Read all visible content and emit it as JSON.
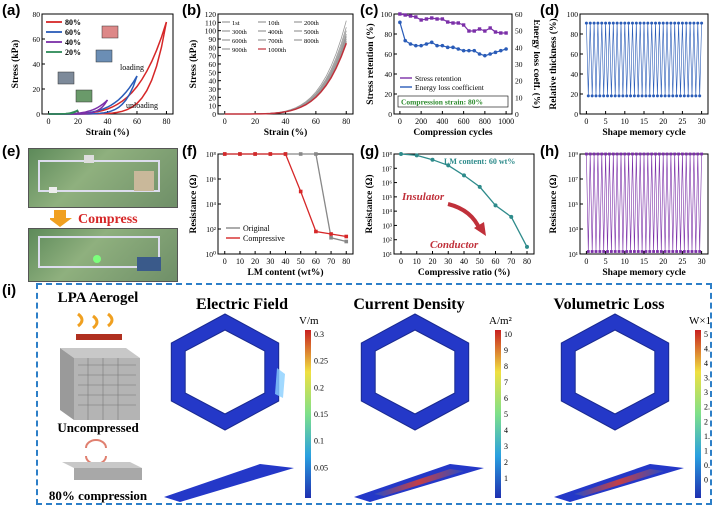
{
  "labels": {
    "a": "(a)",
    "b": "(b)",
    "c": "(c)",
    "d": "(d)",
    "e": "(e)",
    "f": "(f)",
    "g": "(g)",
    "h": "(h)",
    "i": "(i)"
  },
  "colors": {
    "accent": "#2d7fc8",
    "red": "#d62728",
    "purple": "#7b2fa8",
    "blue": "#2a5cb8",
    "teal": "#2e8b8b",
    "gray": "#888888"
  },
  "panel_e": {
    "compress_label": "Compress"
  },
  "panel_i": {
    "aerogel_title": "LPA Aerogel",
    "uncompressed": "Uncompressed",
    "compressed": "80% compression",
    "fields": [
      {
        "title": "Electric Field",
        "unit": "V/m",
        "ticks": [
          "0.3",
          "0.25",
          "0.2",
          "0.15",
          "0.1",
          "0.05"
        ]
      },
      {
        "title": "Current Density",
        "unit": "A/m²",
        "ticks": [
          "10",
          "9",
          "8",
          "7",
          "6",
          "5",
          "4",
          "3",
          "2",
          "1"
        ]
      },
      {
        "title": "Volumetric Loss",
        "unit": "W×10⁻⁵/m³",
        "ticks": [
          "5",
          "4.5",
          "4",
          "3.5",
          "3",
          "2.5",
          "2",
          "1.5",
          "1",
          "0.5",
          "0"
        ]
      }
    ]
  },
  "chart_data": [
    {
      "id": "a",
      "type": "line",
      "xlabel": "Strain (%)",
      "ylabel": "Stress (kPa)",
      "xticks": [
        "0",
        "20",
        "40",
        "60",
        "80"
      ],
      "yticks": [
        "0",
        "20",
        "40",
        "60",
        "80"
      ],
      "xlim": [
        0,
        85
      ],
      "ylim": [
        0,
        100
      ],
      "legend": "top-left",
      "annotations": [
        "loading",
        "unloading"
      ],
      "series": [
        {
          "name": "80%",
          "color": "#d62728",
          "max_strain": 80,
          "max_stress": 92
        },
        {
          "name": "60%",
          "color": "#2a5cb8",
          "max_strain": 60,
          "max_stress": 38
        },
        {
          "name": "40%",
          "color": "#7b2fa8",
          "max_strain": 40,
          "max_stress": 14
        },
        {
          "name": "20%",
          "color": "#2e8b57",
          "max_strain": 20,
          "max_stress": 4
        }
      ]
    },
    {
      "id": "b",
      "type": "line",
      "xlabel": "Strain (%)",
      "ylabel": "Stress (kPa)",
      "xticks": [
        "0",
        "20",
        "40",
        "60",
        "80"
      ],
      "yticks": [
        "0",
        "10",
        "20",
        "30",
        "40",
        "50",
        "60",
        "70",
        "80",
        "90",
        "100",
        "110",
        "120"
      ],
      "xlim": [
        0,
        85
      ],
      "ylim": [
        0,
        120
      ],
      "legend": "top-left",
      "legend_entries": [
        "1st",
        "10th",
        "200th",
        "300th",
        "400th",
        "500th",
        "600th",
        "700th",
        "800th",
        "900th",
        "1000th"
      ],
      "series_max_stress": [
        112,
        104,
        100,
        96,
        94,
        92,
        90,
        88,
        87,
        86,
        85
      ]
    },
    {
      "id": "c",
      "type": "line",
      "xlabel": "Compression cycles",
      "ylabel": "Stress retention (%)",
      "y2label": "Energy loss coeff. (%)",
      "xticks": [
        "0",
        "200",
        "400",
        "600",
        "800",
        "1000"
      ],
      "yticks": [
        "0",
        "20",
        "40",
        "60",
        "80",
        "100"
      ],
      "y2ticks": [
        "0",
        "10",
        "20",
        "30",
        "40",
        "50",
        "60"
      ],
      "annotation": "Compression strain: 80%",
      "series": [
        {
          "name": "Stress retention",
          "color": "#7b2fa8",
          "x": [
            0,
            50,
            100,
            150,
            200,
            250,
            300,
            350,
            400,
            450,
            500,
            550,
            600,
            650,
            700,
            750,
            800,
            850,
            900,
            950,
            1000
          ],
          "values": [
            100,
            99,
            98,
            97,
            94,
            95,
            96,
            95,
            95,
            92,
            91,
            91,
            89,
            83,
            83,
            85,
            83,
            86,
            82,
            81,
            81
          ]
        },
        {
          "name": "Energy loss coefficient",
          "color": "#2a5cb8",
          "x": [
            0,
            50,
            100,
            150,
            200,
            250,
            300,
            350,
            400,
            450,
            500,
            550,
            600,
            650,
            700,
            750,
            800,
            850,
            900,
            950,
            1000
          ],
          "values": [
            55,
            44,
            42,
            41,
            41,
            42,
            43,
            41,
            41,
            40,
            40,
            39,
            38,
            38,
            38,
            36,
            35,
            36,
            37,
            38,
            39
          ]
        }
      ]
    },
    {
      "id": "d",
      "type": "line",
      "xlabel": "Shape memory cycle",
      "ylabel": "Relative thickness (%)",
      "xticks": [
        "0",
        "5",
        "10",
        "15",
        "20",
        "25",
        "30"
      ],
      "yticks": [
        "0",
        "20",
        "40",
        "60",
        "80",
        "100"
      ],
      "xlim": [
        0,
        30
      ],
      "ylim": [
        0,
        110
      ],
      "series": [
        {
          "name": "",
          "color": "#2a5cb8",
          "high": 100,
          "low": 20,
          "cycles": 30
        }
      ]
    },
    {
      "id": "f",
      "type": "line",
      "xlabel": "LM content (wt%)",
      "ylabel": "Resistance (Ω)",
      "xticks": [
        "0",
        "10",
        "20",
        "30",
        "40",
        "50",
        "60",
        "70",
        "80"
      ],
      "yticks": [
        "10^0",
        "10^2",
        "10^4",
        "10^6",
        "10^8"
      ],
      "log_y": true,
      "legend": "bottom-left",
      "series": [
        {
          "name": "Original",
          "color": "#888888",
          "x": [
            0,
            10,
            20,
            30,
            40,
            50,
            60,
            70,
            80
          ],
          "log_values": [
            8,
            8,
            8,
            8,
            8,
            8,
            8,
            1.3,
            1
          ]
        },
        {
          "name": "Compressive",
          "color": "#d62728",
          "x": [
            0,
            10,
            20,
            30,
            40,
            50,
            60,
            70,
            80
          ],
          "log_values": [
            8,
            8,
            8,
            8,
            8,
            5,
            1.8,
            1.6,
            1.4
          ]
        }
      ]
    },
    {
      "id": "g",
      "type": "line",
      "xlabel": "Compressive ratio (%)",
      "ylabel": "Resistance (Ω)",
      "xticks": [
        "0",
        "10",
        "20",
        "30",
        "40",
        "50",
        "60",
        "70",
        "80"
      ],
      "yticks": [
        "10^1",
        "10^2",
        "10^3",
        "10^4",
        "10^5",
        "10^6",
        "10^7",
        "10^8"
      ],
      "log_y": true,
      "annotations": [
        "LM content: 60 wt%",
        "Insulator",
        "Conductor"
      ],
      "series": [
        {
          "name": "",
          "color": "#2e8b8b",
          "x": [
            0,
            10,
            20,
            30,
            40,
            50,
            60,
            70,
            80
          ],
          "log_values": [
            8.0,
            7.9,
            7.6,
            7.2,
            6.5,
            5.7,
            4.4,
            3.6,
            1.5
          ]
        }
      ]
    },
    {
      "id": "h",
      "type": "line",
      "xlabel": "Shape memory cycle",
      "ylabel": "Resistance (Ω)",
      "xticks": [
        "0",
        "5",
        "10",
        "15",
        "20",
        "25",
        "30"
      ],
      "yticks": [
        "10^1",
        "10^3",
        "10^5",
        "10^7",
        "10^9"
      ],
      "log_y": true,
      "series": [
        {
          "name": "",
          "color": "#7b2fa8",
          "high_log": 9,
          "low_log": 1,
          "cycles": 30
        }
      ]
    }
  ]
}
